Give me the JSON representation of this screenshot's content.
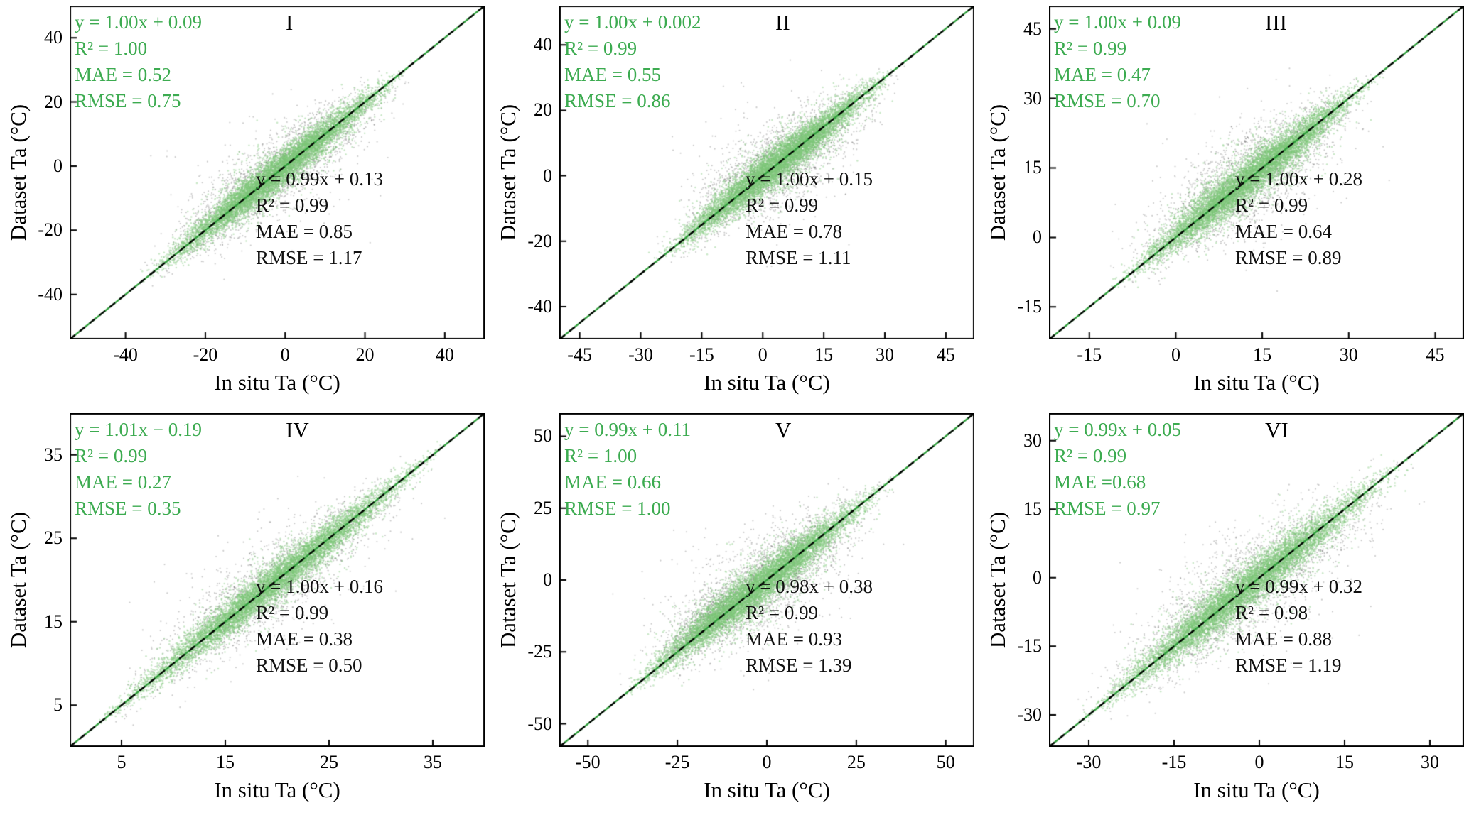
{
  "chart_data": {
    "type": "scatter",
    "description": "Six-panel density scatter comparison of dataset air temperature versus in situ air temperature with 1:1 dashed line and regression statistics (green = one product, black = other product).",
    "style": {
      "core_rgba": "rgba(125,198,120,0.42)",
      "halo_rgba": "rgba(80,80,80,0.30)",
      "identity_green": "#2e9e3a",
      "identity_black": "#000000",
      "axis": "#000000",
      "text_green": "#3cab50",
      "text_black": "#111111"
    },
    "panels": [
      {
        "label": "I",
        "xlabel": "In situ Ta (°C)",
        "ylabel": "Dataset Ta (°C)",
        "xlim": [
          -54,
          50
        ],
        "ylim": [
          -54,
          50
        ],
        "xticks": [
          -40,
          -20,
          0,
          20,
          40
        ],
        "yticks": [
          -40,
          -20,
          0,
          20,
          40
        ],
        "data_range": [
          -38,
          33
        ],
        "cloud": {
          "n_core": 8200,
          "n_halo": 2400,
          "sigma_core": 1.5,
          "sigma_halo": 3.4
        },
        "stats_green": {
          "equation": "y = 1.00x + 0.09",
          "r2": "R² = 1.00",
          "mae": "MAE = 0.52",
          "rmse": "RMSE = 0.75"
        },
        "stats_black": {
          "equation": "y = 0.99x + 0.13",
          "r2": "R² = 0.99",
          "mae": "MAE = 0.85",
          "rmse": "RMSE = 1.17"
        },
        "fit_green": {
          "slope": 1.0,
          "intercept": 0.09
        },
        "fit_black": {
          "slope": 0.99,
          "intercept": 0.13
        }
      },
      {
        "label": "II",
        "xlabel": "In situ Ta (°C)",
        "ylabel": "Dataset Ta (°C)",
        "xlim": [
          -50,
          52
        ],
        "ylim": [
          -50,
          52
        ],
        "xticks": [
          -45,
          -30,
          -15,
          0,
          15,
          30,
          45
        ],
        "yticks": [
          -40,
          -20,
          0,
          20,
          40
        ],
        "data_range": [
          -28,
          35
        ],
        "cloud": {
          "n_core": 8200,
          "n_halo": 2400,
          "sigma_core": 1.6,
          "sigma_halo": 3.7
        },
        "stats_green": {
          "equation": "y = 1.00x + 0.002",
          "r2": "R² = 0.99",
          "mae": "MAE = 0.55",
          "rmse": "RMSE = 0.86"
        },
        "stats_black": {
          "equation": "y = 1.00x + 0.15",
          "r2": "R² = 0.99",
          "mae": "MAE = 0.78",
          "rmse": "RMSE = 1.11"
        },
        "fit_green": {
          "slope": 1.0,
          "intercept": 0.002
        },
        "fit_black": {
          "slope": 1.0,
          "intercept": 0.15
        }
      },
      {
        "label": "III",
        "xlabel": "In situ Ta (°C)",
        "ylabel": "Dataset Ta (°C)",
        "xlim": [
          -22,
          50
        ],
        "ylim": [
          -22,
          50
        ],
        "xticks": [
          -15,
          0,
          15,
          30,
          45
        ],
        "yticks": [
          -15,
          0,
          15,
          30,
          45
        ],
        "data_range": [
          -12,
          37
        ],
        "cloud": {
          "n_core": 8200,
          "n_halo": 2400,
          "sigma_core": 1.2,
          "sigma_halo": 2.8
        },
        "stats_green": {
          "equation": "y = 1.00x + 0.09",
          "r2": "R² = 0.99",
          "mae": "MAE = 0.47",
          "rmse": "RMSE = 0.70"
        },
        "stats_black": {
          "equation": "y = 1.00x + 0.28",
          "r2": "R² = 0.99",
          "mae": "MAE = 0.64",
          "rmse": "RMSE = 0.89"
        },
        "fit_green": {
          "slope": 1.0,
          "intercept": 0.09
        },
        "fit_black": {
          "slope": 1.0,
          "intercept": 0.28
        }
      },
      {
        "label": "IV",
        "xlabel": "In situ Ta (°C)",
        "ylabel": "Dataset Ta (°C)",
        "xlim": [
          0,
          40
        ],
        "ylim": [
          0,
          40
        ],
        "xticks": [
          5,
          15,
          25,
          35
        ],
        "yticks": [
          5,
          15,
          25,
          35
        ],
        "data_range": [
          2,
          37
        ],
        "cloud": {
          "n_core": 8200,
          "n_halo": 2000,
          "sigma_core": 0.6,
          "sigma_halo": 1.4
        },
        "stats_green": {
          "equation": "y = 1.01x − 0.19",
          "r2": "R² = 0.99",
          "mae": "MAE = 0.27",
          "rmse": "RMSE = 0.35"
        },
        "stats_black": {
          "equation": "y = 1.00x + 0.16",
          "r2": "R² = 0.99",
          "mae": "MAE = 0.38",
          "rmse": "RMSE = 0.50"
        },
        "fit_green": {
          "slope": 1.01,
          "intercept": -0.19
        },
        "fit_black": {
          "slope": 1.0,
          "intercept": 0.16
        }
      },
      {
        "label": "V",
        "xlabel": "In situ Ta (°C)",
        "ylabel": "Dataset  Ta (°C)",
        "xlim": [
          -58,
          58
        ],
        "ylim": [
          -58,
          58
        ],
        "xticks": [
          -50,
          -25,
          0,
          25,
          50
        ],
        "yticks": [
          -50,
          -25,
          0,
          25,
          50
        ],
        "data_range": [
          -42,
          37
        ],
        "cloud": {
          "n_core": 8200,
          "n_halo": 2500,
          "sigma_core": 1.9,
          "sigma_halo": 4.4
        },
        "extra_cluster": {
          "x_range": [
            -30,
            -2
          ],
          "spread": 4,
          "max_offset": 13,
          "n": 700
        },
        "stats_green": {
          "equation": "y = 0.99x + 0.11",
          "r2": "R² = 1.00",
          "mae": "MAE = 0.66",
          "rmse": "RMSE = 1.00"
        },
        "stats_black": {
          "equation": "y = 0.98x + 0.38",
          "r2": "R² = 0.99",
          "mae": "MAE = 0.93",
          "rmse": "RMSE = 1.39"
        },
        "fit_green": {
          "slope": 0.99,
          "intercept": 0.11
        },
        "fit_black": {
          "slope": 0.98,
          "intercept": 0.38
        }
      },
      {
        "label": "VI",
        "xlabel": "In situ Ta (°C)",
        "ylabel": "Dataset Ta (°C)",
        "xlim": [
          -37,
          36
        ],
        "ylim": [
          -37,
          36
        ],
        "xticks": [
          -30,
          -15,
          0,
          15,
          30
        ],
        "yticks": [
          -30,
          -15,
          0,
          15,
          30
        ],
        "data_range": [
          -33,
          28
        ],
        "cloud": {
          "n_core": 8200,
          "n_halo": 2400,
          "sigma_core": 1.3,
          "sigma_halo": 3.0
        },
        "stats_green": {
          "equation": "y = 0.99x + 0.05",
          "r2": "R² = 0.99",
          "mae": "MAE =0.68",
          "rmse": "RMSE = 0.97"
        },
        "stats_black": {
          "equation": "y = 0.99x + 0.32",
          "r2": "R² = 0.98",
          "mae": "MAE = 0.88",
          "rmse": "RMSE = 1.19"
        },
        "fit_green": {
          "slope": 0.99,
          "intercept": 0.05
        },
        "fit_black": {
          "slope": 0.99,
          "intercept": 0.32
        }
      }
    ]
  }
}
